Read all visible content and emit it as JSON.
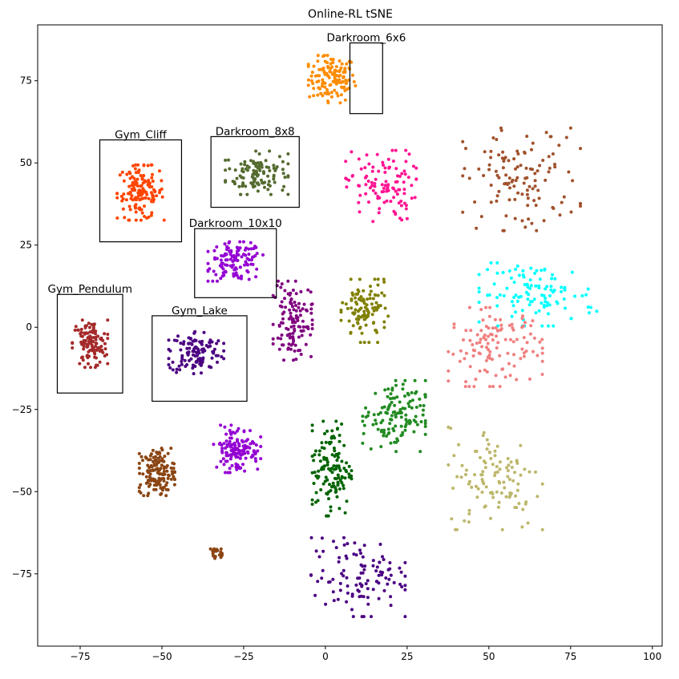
{
  "chart_data": {
    "type": "scatter",
    "title": "Online-RL tSNE",
    "xlabel": "",
    "ylabel": "",
    "xlim": [
      -88,
      103
    ],
    "ylim": [
      -97,
      92
    ],
    "xticks": [
      -75,
      -50,
      -25,
      0,
      25,
      50,
      75,
      100
    ],
    "yticks": [
      -75,
      -50,
      -25,
      0,
      25,
      50,
      75
    ],
    "xtick_labels": [
      "−75",
      "−50",
      "−25",
      "0",
      "25",
      "50",
      "75",
      "100"
    ],
    "ytick_labels": [
      "−75",
      "−50",
      "−25",
      "0",
      "25",
      "50",
      "75"
    ],
    "grid": false,
    "legend": "none",
    "annotations": [
      {
        "label": "Darkroom_6x6",
        "x0": 7.5,
        "x1": 17.5,
        "y0": 65,
        "y1": 86.5
      },
      {
        "label": "Darkroom_8x8",
        "x0": -35,
        "x1": -8,
        "y0": 36.5,
        "y1": 58
      },
      {
        "label": "Gym_Cliff",
        "x0": -69,
        "x1": -44,
        "y0": 26,
        "y1": 57
      },
      {
        "label": "Darkroom_10x10",
        "x0": -40,
        "x1": -15,
        "y0": 9,
        "y1": 30
      },
      {
        "label": "Gym_Pendulum",
        "x0": -82,
        "x1": -62,
        "y0": -20,
        "y1": 10
      },
      {
        "label": "Gym_Lake",
        "x0": -53,
        "x1": -24,
        "y0": -22.5,
        "y1": 3.5
      }
    ],
    "clusters": [
      {
        "color": "#ff8c00",
        "x": 2,
        "y": 75.5,
        "sx": 6,
        "sy": 6,
        "n": 130
      },
      {
        "color": "#556b2f",
        "x": -21,
        "y": 47,
        "sx": 8,
        "sy": 5.5,
        "n": 120
      },
      {
        "color": "#ff4500",
        "x": -56.5,
        "y": 41,
        "sx": 6,
        "sy": 7,
        "n": 140
      },
      {
        "color": "#9400d3",
        "x": -27.5,
        "y": 20,
        "sx": 7,
        "sy": 5,
        "n": 120
      },
      {
        "color": "#a52a2a",
        "x": -72,
        "y": -5,
        "sx": 4.5,
        "sy": 6,
        "n": 120
      },
      {
        "color": "#4b0082",
        "x": -39.5,
        "y": -7.5,
        "sx": 7,
        "sy": 5.5,
        "n": 120
      },
      {
        "color": "#ff1493",
        "x": 17,
        "y": 43,
        "sx": 9,
        "sy": 9,
        "n": 110
      },
      {
        "color": "#a0522d",
        "x": 60,
        "y": 45,
        "sx": 15,
        "sy": 13,
        "n": 120
      },
      {
        "color": "#00ffff",
        "x": 65,
        "y": 10,
        "sx": 15,
        "sy": 8,
        "n": 110
      },
      {
        "color": "#f08080",
        "x": 52,
        "y": -6,
        "sx": 12,
        "sy": 10,
        "n": 120
      },
      {
        "color": "#808000",
        "x": 12,
        "y": 5,
        "sx": 6,
        "sy": 8,
        "n": 110
      },
      {
        "color": "#800080",
        "x": -10,
        "y": 2,
        "sx": 5,
        "sy": 10,
        "n": 120
      },
      {
        "color": "#228b22",
        "x": 21,
        "y": -27,
        "sx": 8,
        "sy": 9,
        "n": 130
      },
      {
        "color": "#006400",
        "x": 2,
        "y": -43,
        "sx": 5,
        "sy": 12,
        "n": 130
      },
      {
        "color": "#bdb76b",
        "x": 52,
        "y": -46,
        "sx": 12,
        "sy": 13,
        "n": 110
      },
      {
        "color": "#9400d3",
        "x": -27,
        "y": -37,
        "sx": 6,
        "sy": 6,
        "n": 130
      },
      {
        "color": "#8b4513",
        "x": -51.5,
        "y": -44,
        "sx": 4.5,
        "sy": 6,
        "n": 140
      },
      {
        "color": "#4b0082",
        "x": 10,
        "y": -76,
        "sx": 12,
        "sy": 10,
        "n": 110
      },
      {
        "color": "#8b4513",
        "x": -34,
        "y": -68.5,
        "sx": 2,
        "sy": 1.5,
        "n": 20
      }
    ]
  }
}
